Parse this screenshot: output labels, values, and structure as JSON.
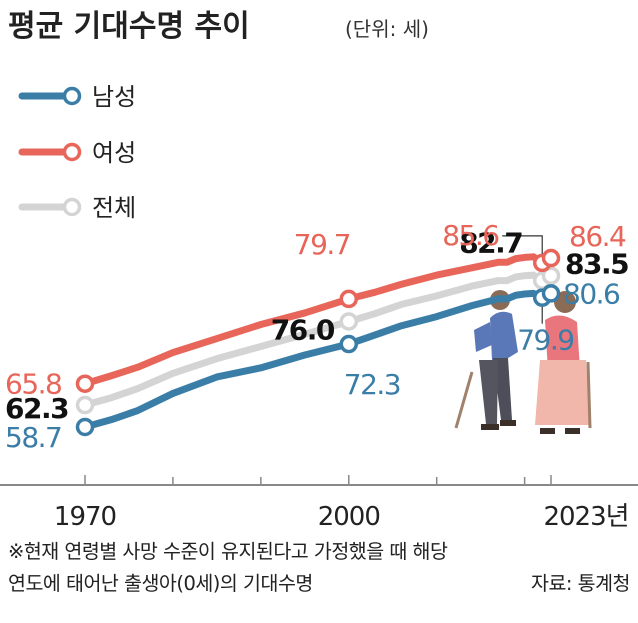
{
  "header": {
    "title": "평균 기대수명 추이",
    "unit": "(단위: 세)"
  },
  "chart_data": {
    "type": "line",
    "title": "평균 기대수명 추이",
    "unit": "(단위: 세)",
    "x_ticks": [
      "1970",
      "2000",
      "2023년"
    ],
    "legend_position": "top-left",
    "series": [
      {
        "name": "남성",
        "color": "#3a7ea7",
        "points": [
          [
            1970,
            58.7
          ],
          [
            1973,
            59.9
          ],
          [
            1976,
            61.4
          ],
          [
            1980,
            64.2
          ],
          [
            1985,
            66.9
          ],
          [
            1990,
            68.4
          ],
          [
            1995,
            70.5
          ],
          [
            2000,
            72.3
          ],
          [
            2003,
            73.8
          ],
          [
            2006,
            75.3
          ],
          [
            2010,
            76.8
          ],
          [
            2014,
            78.6
          ],
          [
            2017,
            79.7
          ],
          [
            2018,
            79.7
          ],
          [
            2019,
            80.3
          ],
          [
            2020,
            80.5
          ],
          [
            2021,
            80.6
          ],
          [
            2022,
            79.9
          ],
          [
            2023,
            80.6
          ]
        ],
        "labeled": [
          {
            "x": 1970,
            "y": 58.7,
            "label": "58.7"
          },
          {
            "x": 2000,
            "y": 72.3,
            "label": "72.3"
          },
          {
            "x": 2022,
            "y": 79.9,
            "label": "79.9"
          },
          {
            "x": 2023,
            "y": 80.6,
            "label": "80.6"
          }
        ]
      },
      {
        "name": "여성",
        "color": "#e8655a",
        "points": [
          [
            1970,
            65.8
          ],
          [
            1973,
            67.1
          ],
          [
            1976,
            68.5
          ],
          [
            1980,
            70.9
          ],
          [
            1985,
            73.2
          ],
          [
            1990,
            75.5
          ],
          [
            1995,
            77.4
          ],
          [
            2000,
            79.7
          ],
          [
            2003,
            80.8
          ],
          [
            2006,
            82.1
          ],
          [
            2010,
            83.6
          ],
          [
            2014,
            84.8
          ],
          [
            2017,
            85.7
          ],
          [
            2018,
            85.7
          ],
          [
            2019,
            86.3
          ],
          [
            2020,
            86.5
          ],
          [
            2021,
            86.6
          ],
          [
            2022,
            85.6
          ],
          [
            2023,
            86.4
          ]
        ],
        "labeled": [
          {
            "x": 1970,
            "y": 65.8,
            "label": "65.8"
          },
          {
            "x": 2000,
            "y": 79.7,
            "label": "79.7"
          },
          {
            "x": 2022,
            "y": 85.6,
            "label": "85.6"
          },
          {
            "x": 2023,
            "y": 86.4,
            "label": "86.4"
          }
        ]
      },
      {
        "name": "전체",
        "color": "#d4d4d4",
        "points": [
          [
            1970,
            62.3
          ],
          [
            1973,
            63.5
          ],
          [
            1976,
            65.0
          ],
          [
            1980,
            67.5
          ],
          [
            1985,
            69.9
          ],
          [
            1990,
            71.9
          ],
          [
            1995,
            73.9
          ],
          [
            2000,
            76.0
          ],
          [
            2003,
            77.3
          ],
          [
            2006,
            78.8
          ],
          [
            2010,
            80.2
          ],
          [
            2014,
            81.8
          ],
          [
            2017,
            82.7
          ],
          [
            2018,
            82.7
          ],
          [
            2019,
            83.3
          ],
          [
            2020,
            83.5
          ],
          [
            2021,
            83.6
          ],
          [
            2022,
            82.7
          ],
          [
            2023,
            83.5
          ]
        ],
        "labeled": [
          {
            "x": 1970,
            "y": 62.3,
            "label": "62.3"
          },
          {
            "x": 2000,
            "y": 76.0,
            "label": "76.0"
          },
          {
            "x": 2022,
            "y": 82.7,
            "label": "82.7"
          },
          {
            "x": 2023,
            "y": 83.5,
            "label": "83.5"
          }
        ]
      }
    ]
  },
  "footer": {
    "note_line1": "※현재 연령별 사망 수준이 유지된다고 가정했을 때 해당",
    "note_line2": "연도에 태어난 출생아(0세)의 기대수명",
    "source": "자료: 통계청"
  },
  "illustration": {
    "icon": "elderly-couple-with-canes-icon"
  }
}
